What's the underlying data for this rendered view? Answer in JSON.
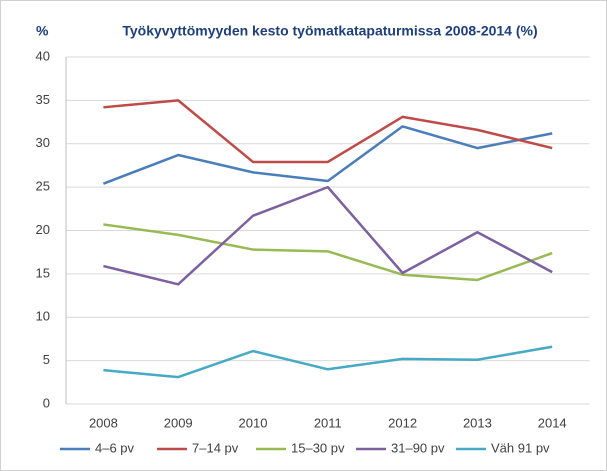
{
  "chart_data": {
    "type": "line",
    "title": "Työkyvyttömyyden  kesto  työmatkatapaturmissa  2008-2014 (%)",
    "y_label": "%",
    "categories": [
      "2008",
      "2009",
      "2010",
      "2011",
      "2012",
      "2013",
      "2014"
    ],
    "series": [
      {
        "name": "4–6 pv",
        "color": "#4a7ebb",
        "values": [
          25.4,
          28.7,
          26.7,
          25.7,
          32.0,
          29.5,
          31.2
        ]
      },
      {
        "name": "7–14 pv",
        "color": "#be4b48",
        "values": [
          34.2,
          35.0,
          27.9,
          27.9,
          33.1,
          31.6,
          29.5
        ]
      },
      {
        "name": "15–30 pv",
        "color": "#98b954",
        "values": [
          20.7,
          19.5,
          17.8,
          17.6,
          14.9,
          14.3,
          17.4
        ]
      },
      {
        "name": "31–90 pv",
        "color": "#7d60a0",
        "values": [
          15.9,
          13.8,
          21.7,
          25.0,
          15.1,
          19.8,
          15.2
        ]
      },
      {
        "name": "Väh 91 pv",
        "color": "#46aac5",
        "values": [
          3.9,
          3.1,
          6.1,
          4.0,
          5.2,
          5.1,
          6.6
        ]
      }
    ],
    "ylim": [
      0,
      40
    ],
    "yticks": [
      0,
      5,
      10,
      15,
      20,
      25,
      30,
      35,
      40
    ],
    "grid": true,
    "legend": "bottom"
  }
}
